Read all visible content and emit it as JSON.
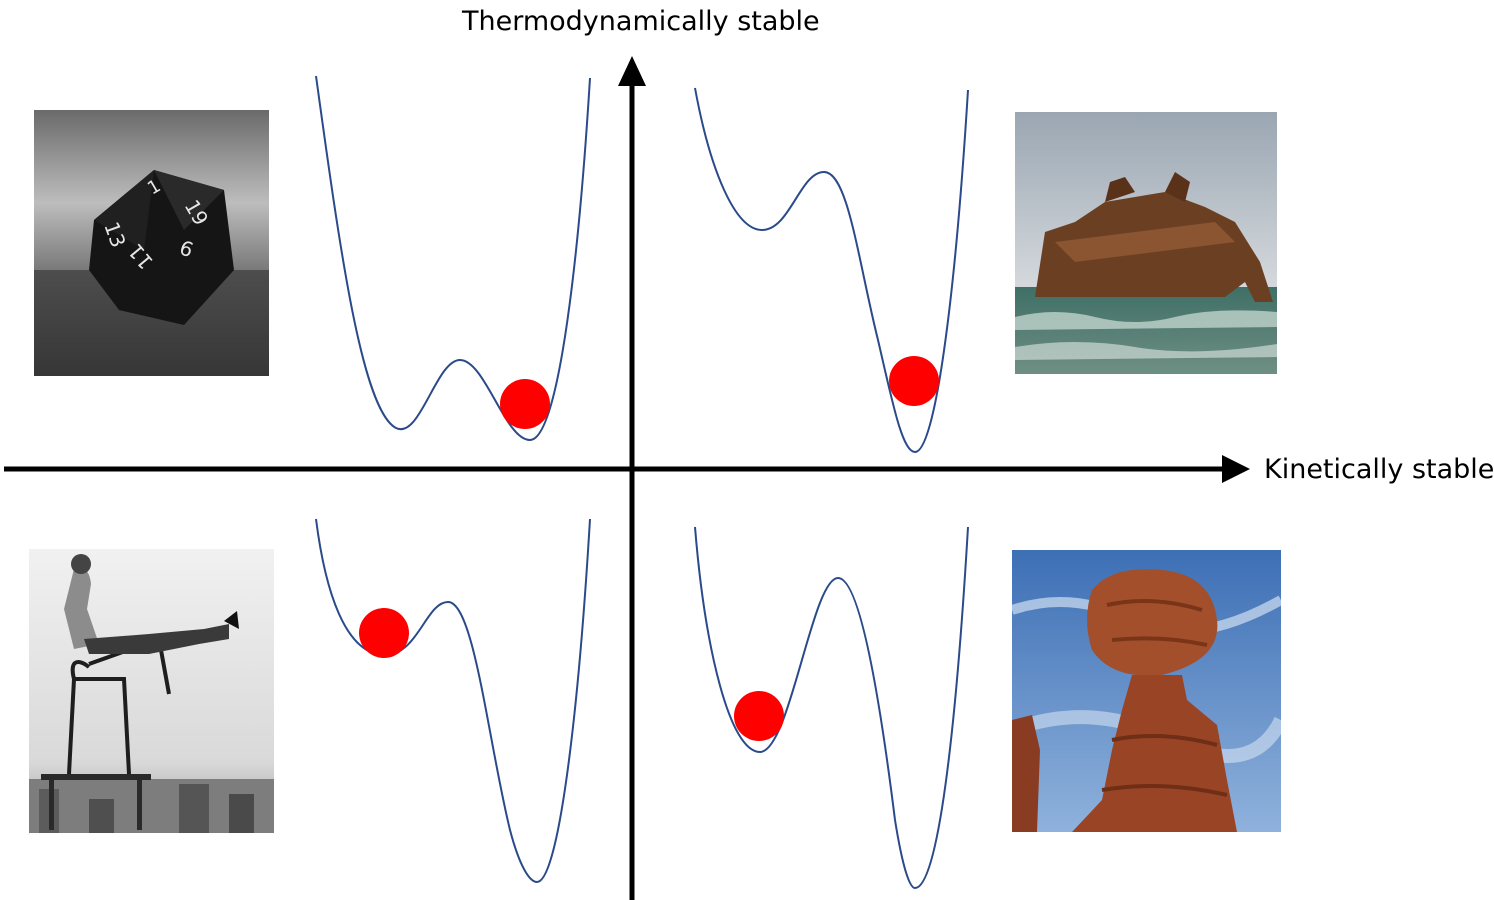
{
  "axes": {
    "y_label": "Thermodynamically stable",
    "x_label": "Kinetically stable",
    "axis_color": "#000000"
  },
  "curve_color": "#2a4a8a",
  "ball_color": "#ff0000",
  "quadrants": [
    {
      "position": "top-left",
      "ball_in": "right well",
      "photo": "d20-die-photo",
      "dice_faces": [
        "1",
        "13",
        "19",
        "11",
        "9"
      ]
    },
    {
      "position": "top-right",
      "ball_in": "deep right well",
      "photo": "shipwreck-photo"
    },
    {
      "position": "bottom-left",
      "ball_in": "shallow left well",
      "photo": "man-balancing-on-chairs-photo"
    },
    {
      "position": "bottom-right",
      "ball_in": "shallow left well",
      "photo": "balanced-rock-photo"
    }
  ]
}
